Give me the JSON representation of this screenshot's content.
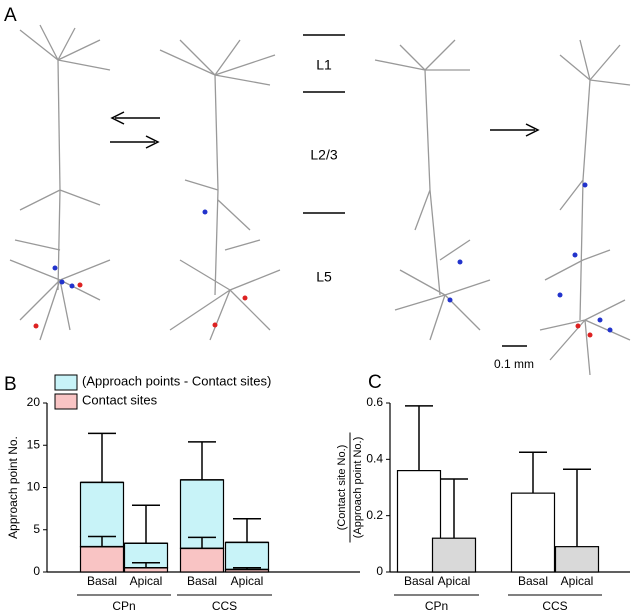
{
  "panel_labels": [
    "A",
    "B",
    "C"
  ],
  "panel_a": {
    "layers": [
      "L1",
      "L2/3",
      "L5"
    ],
    "scale_bar": "0.1 mm"
  },
  "chart_data": [
    {
      "type": "stacked_bar",
      "ylabel": "Approach point No.",
      "categories": [
        "Basal",
        "Apical",
        "Basal",
        "Apical"
      ],
      "groups": [
        "CPn",
        "CCS"
      ],
      "series": [
        {
          "name": "Contact sites",
          "color": "#f9c4c4",
          "values": [
            3,
            0.5,
            2.8,
            0.3
          ],
          "errors": [
            1.2,
            0.6,
            1.3,
            0.2
          ]
        },
        {
          "name": "(Approach points - Contact sites)",
          "color": "#c8f3f8",
          "values": [
            7.6,
            2.9,
            8.1,
            3.2
          ],
          "errors": [
            5.8,
            4.5,
            4.5,
            2.8
          ]
        }
      ],
      "ylim": [
        0,
        20
      ],
      "yticks": [
        0,
        5,
        10,
        15,
        20
      ]
    },
    {
      "type": "bar",
      "ylabel_numerator": "(Contact site No.)",
      "ylabel_denominator": "(Approach point No.)",
      "categories": [
        "Basal",
        "Apical",
        "Basal",
        "Apical"
      ],
      "groups": [
        "CPn",
        "CCS"
      ],
      "values": [
        0.36,
        0.12,
        0.28,
        0.09
      ],
      "errors": [
        0.23,
        0.21,
        0.145,
        0.275
      ],
      "colors": [
        "#ffffff",
        "#d9d9d9",
        "#ffffff",
        "#d9d9d9"
      ],
      "ylim": [
        0,
        0.6
      ],
      "yticks": [
        0,
        0.2,
        0.4,
        0.6
      ]
    }
  ]
}
